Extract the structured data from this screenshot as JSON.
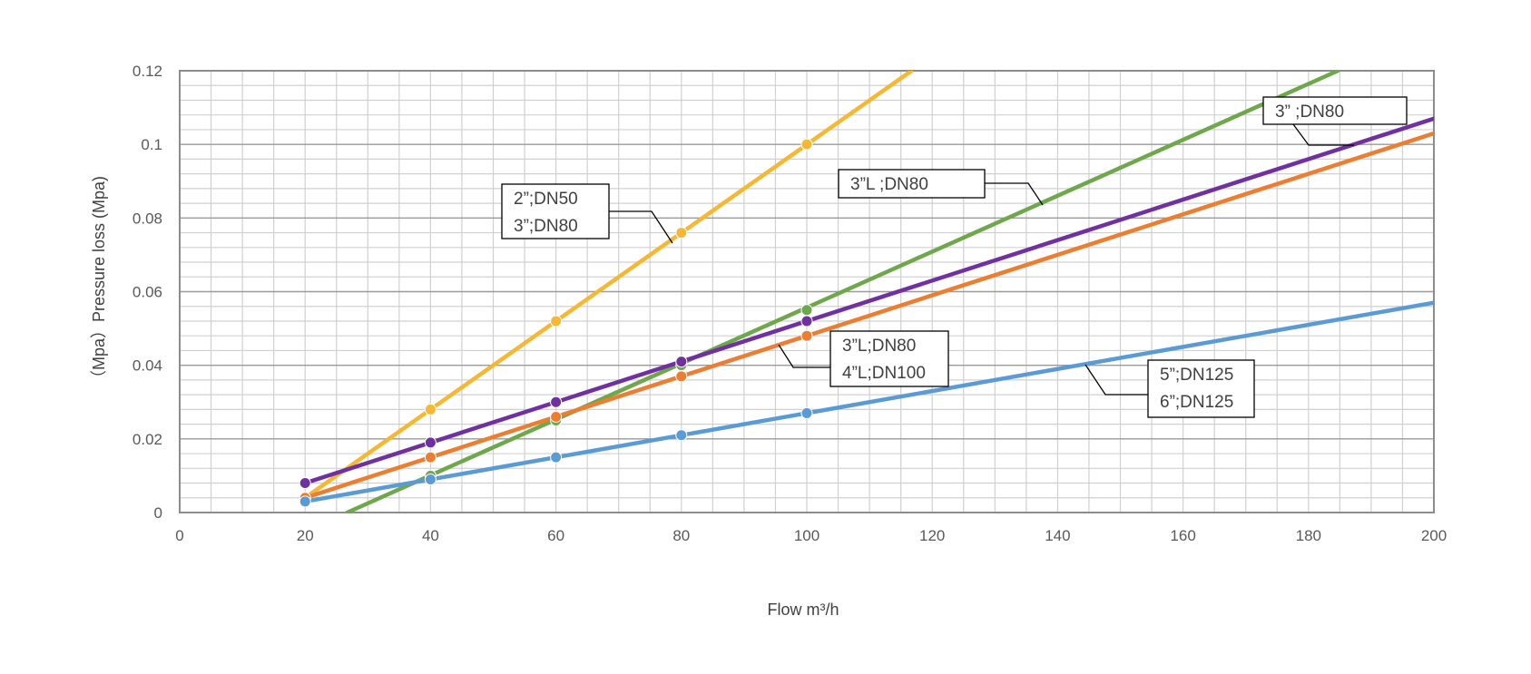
{
  "chart_data": {
    "type": "line",
    "xlabel": "Flow m³/h",
    "ylabel": "（Mpa）Pressure loss (Mpa)",
    "xlim": [
      0,
      200
    ],
    "ylim": [
      0,
      0.12
    ],
    "x_ticks": [
      "0",
      "20",
      "40",
      "60",
      "80",
      "100",
      "120",
      "140",
      "160",
      "180",
      "200"
    ],
    "y_ticks": [
      "0",
      "0.02",
      "0.04",
      "0.06",
      "0.08",
      "0.1",
      "0.12"
    ],
    "grid": {
      "major": true,
      "minor": true
    },
    "legend": "none",
    "series": [
      {
        "color": "#F4B183",
        "stroke": "#F6B733",
        "points": [
          [
            20,
            0.004
          ],
          [
            40,
            0.028
          ],
          [
            60,
            0.052
          ],
          [
            80,
            0.076
          ],
          [
            100,
            0.1
          ]
        ],
        "line": [
          [
            20,
            0.004
          ],
          [
            116.7,
            0.12
          ]
        ]
      },
      {
        "stroke": "#6FA84C",
        "points": [
          [
            40,
            0.01
          ],
          [
            60,
            0.025
          ],
          [
            80,
            0.04
          ],
          [
            100,
            0.055
          ]
        ],
        "line": [
          [
            26.7,
            0.0
          ],
          [
            184.7,
            0.12
          ]
        ]
      },
      {
        "stroke": "#7030A0",
        "points": [
          [
            20,
            0.008
          ],
          [
            40,
            0.019
          ],
          [
            60,
            0.03
          ],
          [
            80,
            0.041
          ],
          [
            100,
            0.052
          ]
        ],
        "line": [
          [
            20,
            0.008
          ],
          [
            200,
            0.107
          ]
        ]
      },
      {
        "stroke": "#ED7D31",
        "points": [
          [
            20,
            0.004
          ],
          [
            40,
            0.015
          ],
          [
            60,
            0.026
          ],
          [
            80,
            0.037
          ],
          [
            100,
            0.048
          ]
        ],
        "line": [
          [
            20,
            0.004
          ],
          [
            200,
            0.103
          ]
        ]
      },
      {
        "stroke": "#5B9BD5",
        "points": [
          [
            20,
            0.003
          ],
          [
            40,
            0.009
          ],
          [
            60,
            0.015
          ],
          [
            80,
            0.021
          ],
          [
            100,
            0.027
          ]
        ],
        "line": [
          [
            20,
            0.003
          ],
          [
            200,
            0.057
          ]
        ]
      }
    ],
    "annotations": [
      {
        "lines": [
          "2”;DN50",
          "3”;DN80"
        ]
      },
      {
        "lines": [
          "3”L        ;DN80"
        ]
      },
      {
        "lines": [
          "3”           ;DN80"
        ]
      },
      {
        "lines": [
          "3”L;DN80",
          "4”L;DN100"
        ]
      },
      {
        "lines": [
          "5”;DN125",
          "6”;DN125"
        ]
      }
    ]
  }
}
